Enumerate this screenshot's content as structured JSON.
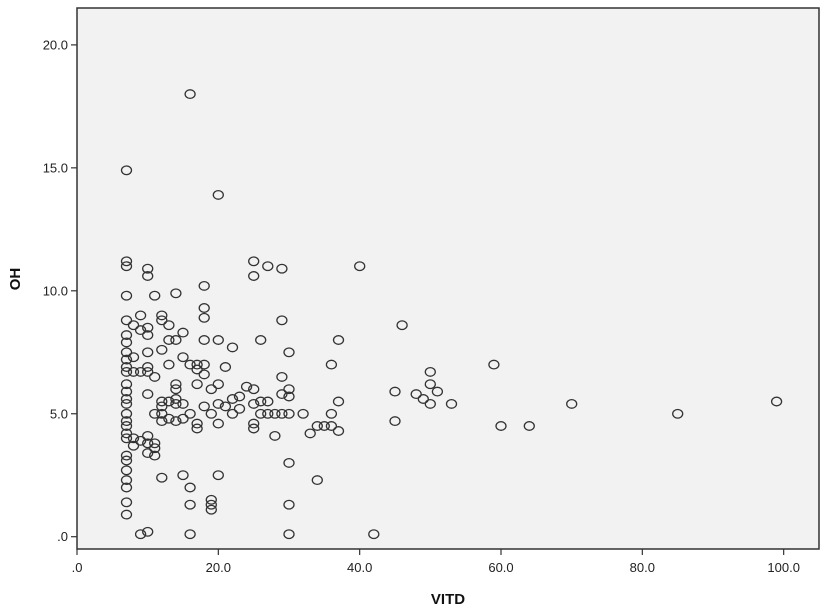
{
  "chart_data": {
    "type": "scatter",
    "xlabel": "VITD",
    "ylabel": "OH",
    "xlim": [
      0,
      105
    ],
    "ylim": [
      -0.5,
      21.5
    ],
    "x_ticks": [
      0,
      20,
      40,
      60,
      80,
      100
    ],
    "x_tick_labels": [
      ".0",
      "20.0",
      "40.0",
      "60.0",
      "80.0",
      "100.0"
    ],
    "y_ticks": [
      0,
      5,
      10,
      15,
      20
    ],
    "y_tick_labels": [
      ".0",
      "5.0",
      "10.0",
      "15.0",
      "20.0"
    ],
    "grid": false,
    "legend": "none",
    "colors": {
      "background": "#f2f2f2",
      "marker": "#333333",
      "axis": "#333333"
    },
    "series": [
      {
        "points": [
          [
            7,
            14.9
          ],
          [
            7,
            11.2
          ],
          [
            7,
            11.0
          ],
          [
            7,
            9.8
          ],
          [
            7,
            8.8
          ],
          [
            7,
            8.2
          ],
          [
            7,
            7.9
          ],
          [
            7,
            7.5
          ],
          [
            7,
            7.2
          ],
          [
            7,
            6.9
          ],
          [
            7,
            6.7
          ],
          [
            7,
            6.2
          ],
          [
            7,
            5.9
          ],
          [
            7,
            5.6
          ],
          [
            7,
            5.4
          ],
          [
            7,
            5.0
          ],
          [
            7,
            4.7
          ],
          [
            7,
            4.5
          ],
          [
            7,
            4.2
          ],
          [
            7,
            4.0
          ],
          [
            7,
            3.3
          ],
          [
            7,
            3.1
          ],
          [
            7,
            2.7
          ],
          [
            7,
            2.3
          ],
          [
            7,
            2.0
          ],
          [
            7,
            1.4
          ],
          [
            7,
            0.9
          ],
          [
            8,
            8.6
          ],
          [
            8,
            7.3
          ],
          [
            8,
            6.7
          ],
          [
            8,
            4.0
          ],
          [
            8,
            3.7
          ],
          [
            9,
            9.0
          ],
          [
            9,
            8.4
          ],
          [
            9,
            6.7
          ],
          [
            9,
            3.9
          ],
          [
            9,
            0.1
          ],
          [
            10,
            10.9
          ],
          [
            10,
            10.6
          ],
          [
            10,
            8.5
          ],
          [
            10,
            8.2
          ],
          [
            10,
            7.5
          ],
          [
            10,
            6.9
          ],
          [
            10,
            6.7
          ],
          [
            10,
            5.8
          ],
          [
            10,
            4.1
          ],
          [
            10,
            3.8
          ],
          [
            10,
            3.4
          ],
          [
            10,
            0.2
          ],
          [
            11,
            9.8
          ],
          [
            11,
            6.5
          ],
          [
            11,
            5.0
          ],
          [
            11,
            3.8
          ],
          [
            11,
            3.6
          ],
          [
            11,
            3.3
          ],
          [
            12,
            9.0
          ],
          [
            12,
            8.8
          ],
          [
            12,
            7.6
          ],
          [
            12,
            5.5
          ],
          [
            12,
            5.3
          ],
          [
            12,
            5.0
          ],
          [
            12,
            4.7
          ],
          [
            12,
            2.4
          ],
          [
            13,
            8.6
          ],
          [
            13,
            8.0
          ],
          [
            13,
            7.0
          ],
          [
            13,
            5.5
          ],
          [
            13,
            4.8
          ],
          [
            14,
            9.9
          ],
          [
            14,
            8.0
          ],
          [
            14,
            6.2
          ],
          [
            14,
            6.0
          ],
          [
            14,
            5.6
          ],
          [
            14,
            5.4
          ],
          [
            14,
            4.7
          ],
          [
            15,
            8.3
          ],
          [
            15,
            7.3
          ],
          [
            15,
            5.4
          ],
          [
            15,
            4.8
          ],
          [
            15,
            2.5
          ],
          [
            16,
            18.0
          ],
          [
            16,
            7.0
          ],
          [
            16,
            5.0
          ],
          [
            16,
            2.0
          ],
          [
            16,
            1.3
          ],
          [
            16,
            0.1
          ],
          [
            17,
            7.0
          ],
          [
            17,
            6.8
          ],
          [
            17,
            6.2
          ],
          [
            17,
            4.6
          ],
          [
            17,
            4.4
          ],
          [
            18,
            10.2
          ],
          [
            18,
            9.3
          ],
          [
            18,
            8.9
          ],
          [
            18,
            8.0
          ],
          [
            18,
            7.0
          ],
          [
            18,
            6.6
          ],
          [
            18,
            5.3
          ],
          [
            19,
            6.0
          ],
          [
            19,
            5.0
          ],
          [
            19,
            1.5
          ],
          [
            19,
            1.3
          ],
          [
            19,
            1.1
          ],
          [
            20,
            13.9
          ],
          [
            20,
            8.0
          ],
          [
            20,
            6.2
          ],
          [
            20,
            5.4
          ],
          [
            20,
            4.6
          ],
          [
            20,
            2.5
          ],
          [
            21,
            6.9
          ],
          [
            21,
            5.3
          ],
          [
            22,
            7.7
          ],
          [
            22,
            5.6
          ],
          [
            22,
            5.0
          ],
          [
            23,
            5.7
          ],
          [
            23,
            5.2
          ],
          [
            24,
            6.1
          ],
          [
            25,
            11.2
          ],
          [
            25,
            10.6
          ],
          [
            25,
            6.0
          ],
          [
            25,
            5.4
          ],
          [
            25,
            4.6
          ],
          [
            25,
            4.4
          ],
          [
            26,
            8.0
          ],
          [
            26,
            5.5
          ],
          [
            26,
            5.0
          ],
          [
            27,
            11.0
          ],
          [
            27,
            5.5
          ],
          [
            27,
            5.0
          ],
          [
            28,
            5.0
          ],
          [
            28,
            4.1
          ],
          [
            29,
            10.9
          ],
          [
            29,
            8.8
          ],
          [
            29,
            6.5
          ],
          [
            29,
            5.8
          ],
          [
            29,
            5.0
          ],
          [
            30,
            7.5
          ],
          [
            30,
            6.0
          ],
          [
            30,
            5.7
          ],
          [
            30,
            5.0
          ],
          [
            30,
            3.0
          ],
          [
            30,
            1.3
          ],
          [
            30,
            0.1
          ],
          [
            32,
            5.0
          ],
          [
            33,
            4.2
          ],
          [
            34,
            4.5
          ],
          [
            34,
            2.3
          ],
          [
            35,
            4.5
          ],
          [
            36,
            7.0
          ],
          [
            36,
            5.0
          ],
          [
            36,
            4.5
          ],
          [
            37,
            8.0
          ],
          [
            37,
            5.5
          ],
          [
            37,
            4.3
          ],
          [
            40,
            11.0
          ],
          [
            42,
            0.1
          ],
          [
            45,
            5.9
          ],
          [
            45,
            4.7
          ],
          [
            46,
            8.6
          ],
          [
            48,
            5.8
          ],
          [
            49,
            5.6
          ],
          [
            50,
            6.7
          ],
          [
            50,
            6.2
          ],
          [
            50,
            5.4
          ],
          [
            51,
            5.9
          ],
          [
            53,
            5.4
          ],
          [
            59,
            7.0
          ],
          [
            60,
            4.5
          ],
          [
            64,
            4.5
          ],
          [
            70,
            5.4
          ],
          [
            85,
            5.0
          ],
          [
            99,
            5.5
          ]
        ]
      }
    ]
  }
}
